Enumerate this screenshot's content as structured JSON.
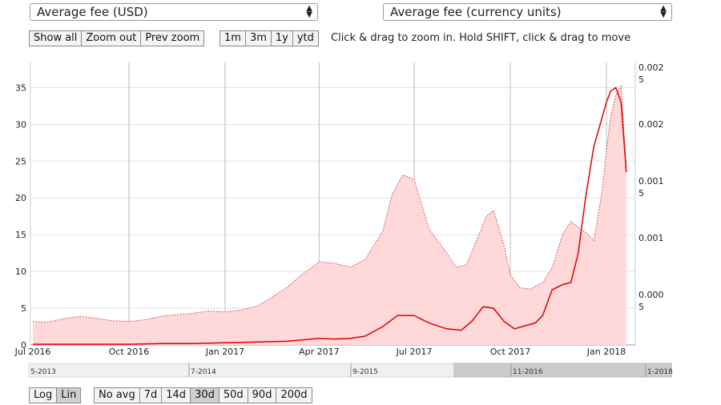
{
  "selectors": {
    "left": {
      "value": "Average fee (USD)"
    },
    "right": {
      "value": "Average fee (currency units)"
    }
  },
  "zoom_buttons": [
    "Show all",
    "Zoom out",
    "Prev zoom"
  ],
  "range_buttons": [
    "1m",
    "3m",
    "1y",
    "ytd"
  ],
  "hint": "Click & drag to zoom in. Hold SHIFT, click & drag to move",
  "scale_buttons": {
    "items": [
      "Log",
      "Lin"
    ],
    "active": "Lin"
  },
  "avg_buttons": {
    "items": [
      "No avg",
      "7d",
      "14d",
      "30d",
      "50d",
      "90d",
      "200d"
    ],
    "active": "30d"
  },
  "navigator_labels": [
    "5-2013",
    "7-2014",
    "9-2015",
    "11-2016",
    "1-2018"
  ],
  "chart_data": {
    "type": "area",
    "x_ticks": [
      "Jul 2016",
      "Oct 2016",
      "Jan 2017",
      "Apr 2017",
      "Jul 2017",
      "Oct 2017",
      "Jan 2018"
    ],
    "y_left_ticks": [
      "0",
      "5",
      "10",
      "15",
      "20",
      "25",
      "30",
      "35"
    ],
    "y_right_ticks": [
      "0.002\n5",
      "0.002",
      "0.001\n5",
      "0.001",
      "0.000\n5"
    ],
    "ylim_left": [
      0,
      37
    ],
    "grid": true,
    "series": [
      {
        "name": "Average fee (USD)",
        "style": "filled area, dotted red outline",
        "color": "#cc3333",
        "fill": "#ffd9d9",
        "x": [
          "2016-07-01",
          "2016-07-15",
          "2016-08-01",
          "2016-08-15",
          "2016-09-01",
          "2016-09-15",
          "2016-10-01",
          "2016-10-15",
          "2016-11-01",
          "2016-11-15",
          "2016-12-01",
          "2016-12-15",
          "2017-01-01",
          "2017-01-15",
          "2017-02-01",
          "2017-02-15",
          "2017-03-01",
          "2017-03-15",
          "2017-04-01",
          "2017-04-15",
          "2017-05-01",
          "2017-05-15",
          "2017-06-01",
          "2017-06-10",
          "2017-06-20",
          "2017-07-01",
          "2017-07-15",
          "2017-08-01",
          "2017-08-10",
          "2017-08-20",
          "2017-09-01",
          "2017-09-08",
          "2017-09-15",
          "2017-09-25",
          "2017-10-01",
          "2017-10-10",
          "2017-10-20",
          "2017-11-01",
          "2017-11-10",
          "2017-11-20",
          "2017-11-28",
          "2017-12-05",
          "2017-12-12",
          "2017-12-20",
          "2017-12-28",
          "2018-01-01",
          "2018-01-05",
          "2018-01-10",
          "2018-01-15",
          "2018-01-20"
        ],
        "values": [
          3.2,
          3.1,
          3.6,
          3.9,
          3.6,
          3.3,
          3.2,
          3.4,
          3.9,
          4.1,
          4.3,
          4.6,
          4.5,
          4.7,
          5.3,
          6.5,
          7.8,
          9.5,
          11.3,
          11.1,
          10.6,
          11.6,
          15.5,
          20.5,
          23.1,
          22.5,
          15.8,
          12.5,
          10.6,
          10.9,
          15.0,
          17.5,
          18.3,
          13.5,
          9.5,
          7.8,
          7.6,
          8.5,
          10.5,
          15.0,
          16.8,
          16.0,
          15.3,
          14.2,
          21.0,
          26.5,
          31.0,
          34.0,
          35.2,
          24.0
        ]
      },
      {
        "name": "Average fee (currency units)",
        "style": "solid red line",
        "color": "#dd0000",
        "x": [
          "2016-07-01",
          "2016-08-01",
          "2016-09-01",
          "2016-10-01",
          "2016-11-01",
          "2016-12-01",
          "2017-01-01",
          "2017-02-01",
          "2017-03-01",
          "2017-04-01",
          "2017-04-15",
          "2017-05-01",
          "2017-05-15",
          "2017-06-01",
          "2017-06-15",
          "2017-07-01",
          "2017-07-15",
          "2017-08-01",
          "2017-08-15",
          "2017-08-25",
          "2017-09-05",
          "2017-09-15",
          "2017-09-25",
          "2017-10-05",
          "2017-10-15",
          "2017-10-25",
          "2017-11-01",
          "2017-11-10",
          "2017-11-20",
          "2017-11-28",
          "2017-12-05",
          "2017-12-12",
          "2017-12-20",
          "2017-12-28",
          "2018-01-01",
          "2018-01-05",
          "2018-01-10",
          "2018-01-15",
          "2018-01-20"
        ],
        "values": [
          0.1,
          0.1,
          0.1,
          0.1,
          0.2,
          0.2,
          0.3,
          0.4,
          0.5,
          0.9,
          0.8,
          0.9,
          1.2,
          2.5,
          4.0,
          4.0,
          3.0,
          2.2,
          2.0,
          3.2,
          5.2,
          5.0,
          3.2,
          2.2,
          2.6,
          3.0,
          4.0,
          7.5,
          8.2,
          8.5,
          12.5,
          20.0,
          27.0,
          31.0,
          33.0,
          34.5,
          35.0,
          33.0,
          23.5
        ]
      }
    ]
  }
}
